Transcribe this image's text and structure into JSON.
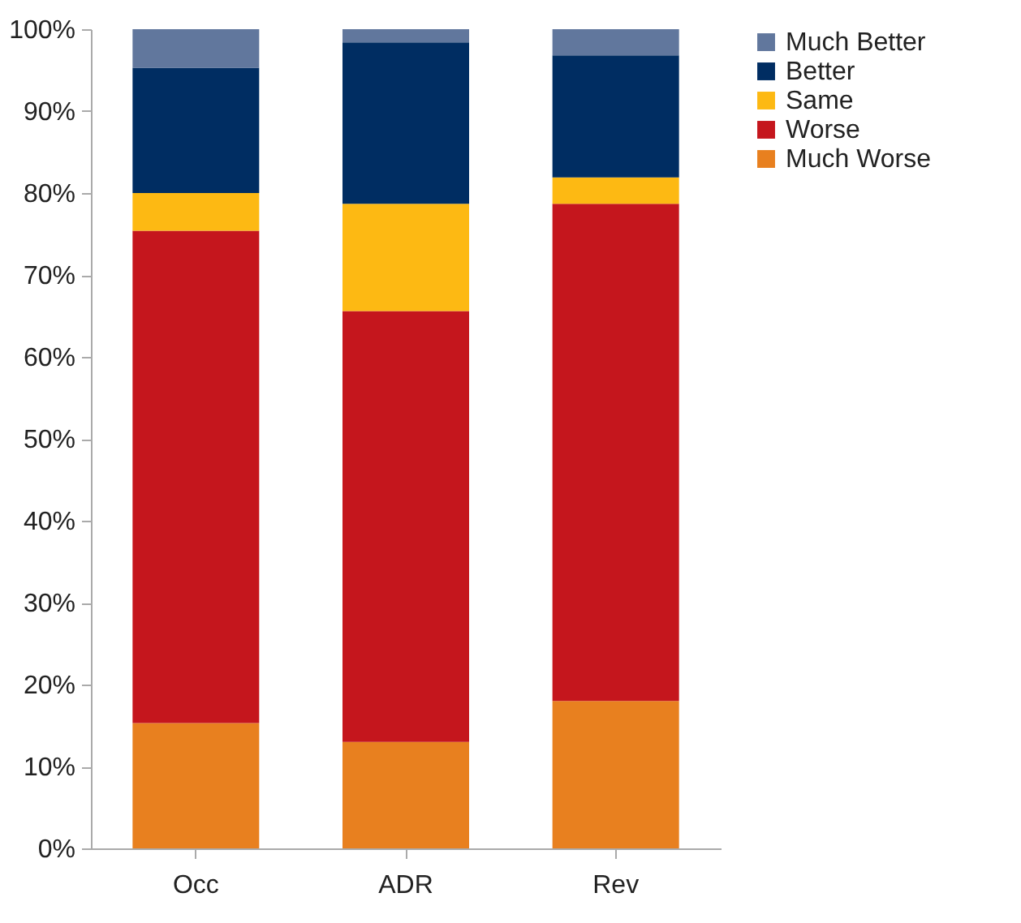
{
  "chart_data": {
    "type": "bar",
    "stacked": true,
    "categories": [
      "Occ",
      "ADR",
      "Rev"
    ],
    "series": [
      {
        "name": "Much Worse",
        "color": "#e8801f",
        "values": [
          15.3,
          13.0,
          18.0
        ]
      },
      {
        "name": "Worse",
        "color": "#c5161d",
        "values": [
          60.1,
          52.6,
          60.7
        ]
      },
      {
        "name": "Same",
        "color": "#fdb913",
        "values": [
          4.6,
          13.1,
          3.2
        ]
      },
      {
        "name": "Better",
        "color": "#002d62",
        "values": [
          15.3,
          19.7,
          14.9
        ]
      },
      {
        "name": "Much Better",
        "color": "#61779d",
        "values": [
          4.7,
          1.6,
          3.2
        ]
      }
    ],
    "ylim": [
      0,
      100
    ],
    "yticks": [
      {
        "value": 0,
        "label": "0%"
      },
      {
        "value": 10,
        "label": "10%"
      },
      {
        "value": 20,
        "label": "20%"
      },
      {
        "value": 30,
        "label": "30%"
      },
      {
        "value": 40,
        "label": "40%"
      },
      {
        "value": 50,
        "label": "50%"
      },
      {
        "value": 60,
        "label": "60%"
      },
      {
        "value": 70,
        "label": "70%"
      },
      {
        "value": 80,
        "label": "80%"
      },
      {
        "value": 90,
        "label": "90%"
      },
      {
        "value": 100,
        "label": "100%"
      }
    ],
    "grid": false,
    "legend": "right"
  }
}
